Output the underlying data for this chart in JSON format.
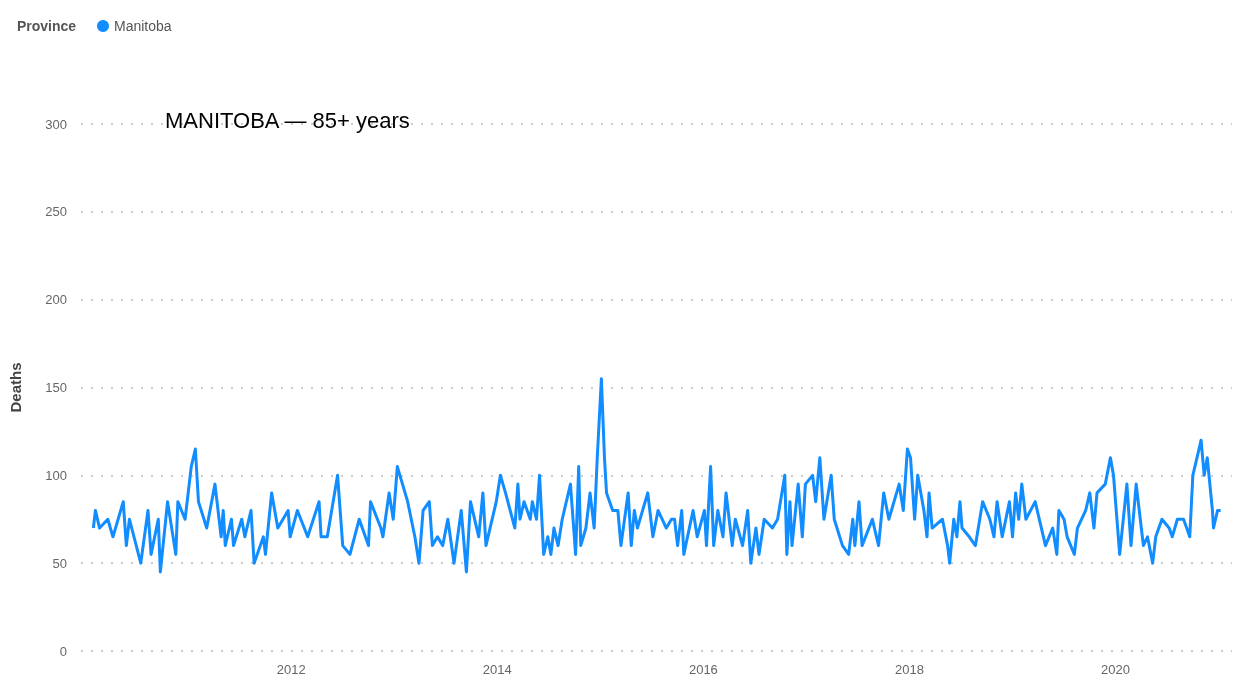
{
  "chart_data": {
    "type": "line",
    "title": "MANITOBA — 85+ years",
    "legend_title": "Province",
    "ylabel": "Deaths",
    "x": [
      2010.08,
      2010.1,
      2010.14,
      2010.22,
      2010.27,
      2010.37,
      2010.4,
      2010.43,
      2010.54,
      2010.61,
      2010.64,
      2010.71,
      2010.73,
      2010.8,
      2010.88,
      2010.9,
      2010.97,
      2011.03,
      2011.07,
      2011.1,
      2011.18,
      2011.26,
      2011.32,
      2011.34,
      2011.36,
      2011.42,
      2011.44,
      2011.52,
      2011.55,
      2011.61,
      2011.64,
      2011.73,
      2011.75,
      2011.81,
      2011.87,
      2011.97,
      2011.99,
      2012.06,
      2012.16,
      2012.27,
      2012.29,
      2012.35,
      2012.45,
      2012.5,
      2012.57,
      2012.66,
      2012.75,
      2012.77,
      2012.87,
      2012.89,
      2012.95,
      2012.99,
      2013.03,
      2013.08,
      2013.13,
      2013.2,
      2013.24,
      2013.28,
      2013.34,
      2013.37,
      2013.42,
      2013.47,
      2013.52,
      2013.58,
      2013.65,
      2013.7,
      2013.74,
      2013.82,
      2013.86,
      2013.89,
      2013.99,
      2014.03,
      2014.08,
      2014.17,
      2014.2,
      2014.22,
      2014.26,
      2014.32,
      2014.34,
      2014.38,
      2014.41,
      2014.45,
      2014.49,
      2014.52,
      2014.55,
      2014.59,
      2014.63,
      2014.71,
      2014.76,
      2014.79,
      2014.81,
      2014.86,
      2014.9,
      2014.94,
      2014.97,
      2015.01,
      2015.04,
      2015.06,
      2015.12,
      2015.17,
      2015.2,
      2015.27,
      2015.3,
      2015.33,
      2015.36,
      2015.46,
      2015.51,
      2015.56,
      2015.64,
      2015.69,
      2015.72,
      2015.75,
      2015.79,
      2015.81,
      2015.9,
      2015.94,
      2016.01,
      2016.03,
      2016.07,
      2016.1,
      2016.14,
      2016.19,
      2016.22,
      2016.28,
      2016.31,
      2016.38,
      2016.43,
      2016.46,
      2016.51,
      2016.54,
      2016.59,
      2016.67,
      2016.72,
      2016.79,
      2016.81,
      2016.84,
      2016.86,
      2016.92,
      2016.96,
      2016.99,
      2017.06,
      2017.09,
      2017.13,
      2017.17,
      2017.24,
      2017.27,
      2017.35,
      2017.41,
      2017.45,
      2017.47,
      2017.51,
      2017.54,
      2017.64,
      2017.7,
      2017.75,
      2017.8,
      2017.9,
      2017.94,
      2017.98,
      2018.01,
      2018.05,
      2018.08,
      2018.14,
      2018.17,
      2018.19,
      2018.22,
      2018.32,
      2018.37,
      2018.39,
      2018.43,
      2018.46,
      2018.49,
      2018.51,
      2018.58,
      2018.64,
      2018.71,
      2018.78,
      2018.82,
      2018.85,
      2018.9,
      2018.97,
      2019.0,
      2019.03,
      2019.06,
      2019.09,
      2019.13,
      2019.22,
      2019.32,
      2019.39,
      2019.43,
      2019.45,
      2019.5,
      2019.53,
      2019.6,
      2019.63,
      2019.71,
      2019.75,
      2019.79,
      2019.82,
      2019.9,
      2019.95,
      2019.98,
      2020.04,
      2020.11,
      2020.15,
      2020.2,
      2020.27,
      2020.31,
      2020.36,
      2020.39,
      2020.45,
      2020.52,
      2020.55,
      2020.6,
      2020.66,
      2020.72,
      2020.75,
      2020.81,
      2020.83,
      2020.86,
      2020.89,
      2020.94,
      2020.95,
      2020.99,
      2021.02
    ],
    "series": [
      {
        "name": "Manitoba",
        "color": "#118dff",
        "values": [
          70,
          80,
          70,
          75,
          65,
          85,
          60,
          75,
          50,
          80,
          55,
          75,
          45,
          85,
          55,
          85,
          75,
          105,
          115,
          85,
          70,
          95,
          65,
          80,
          60,
          75,
          60,
          75,
          65,
          80,
          50,
          65,
          55,
          90,
          70,
          80,
          65,
          80,
          65,
          85,
          65,
          65,
          100,
          60,
          55,
          75,
          60,
          85,
          70,
          65,
          90,
          75,
          105,
          95,
          85,
          65,
          50,
          80,
          85,
          60,
          65,
          60,
          75,
          50,
          80,
          45,
          85,
          65,
          90,
          60,
          85,
          100,
          90,
          70,
          95,
          75,
          85,
          75,
          85,
          75,
          100,
          55,
          65,
          55,
          70,
          60,
          75,
          95,
          55,
          105,
          60,
          70,
          90,
          70,
          110,
          155,
          110,
          90,
          80,
          80,
          60,
          90,
          60,
          80,
          70,
          90,
          65,
          80,
          70,
          75,
          75,
          60,
          80,
          55,
          80,
          65,
          80,
          60,
          105,
          60,
          80,
          65,
          90,
          60,
          75,
          60,
          80,
          50,
          70,
          55,
          75,
          70,
          75,
          100,
          55,
          85,
          60,
          95,
          65,
          95,
          100,
          85,
          110,
          75,
          100,
          75,
          60,
          55,
          75,
          60,
          85,
          60,
          75,
          60,
          90,
          75,
          95,
          80,
          115,
          110,
          75,
          100,
          80,
          65,
          90,
          70,
          75,
          60,
          50,
          75,
          65,
          85,
          70,
          65,
          60,
          85,
          75,
          65,
          85,
          65,
          85,
          65,
          90,
          75,
          95,
          75,
          85,
          60,
          70,
          55,
          80,
          75,
          65,
          55,
          70,
          80,
          90,
          70,
          90,
          95,
          110,
          100,
          55,
          95,
          60,
          95,
          60,
          65,
          50,
          65,
          75,
          70,
          65,
          75,
          75,
          65,
          100,
          115,
          120,
          100,
          110,
          80,
          70,
          80,
          80
        ]
      }
    ],
    "xlim": [
      2009.96,
      2021.13
    ],
    "xticks": [
      2012,
      2014,
      2016,
      2018,
      2020
    ],
    "ylim": [
      0,
      300
    ],
    "yticks": [
      0,
      50,
      100,
      150,
      200,
      250,
      300
    ],
    "grid": "y",
    "legend": "top left"
  }
}
